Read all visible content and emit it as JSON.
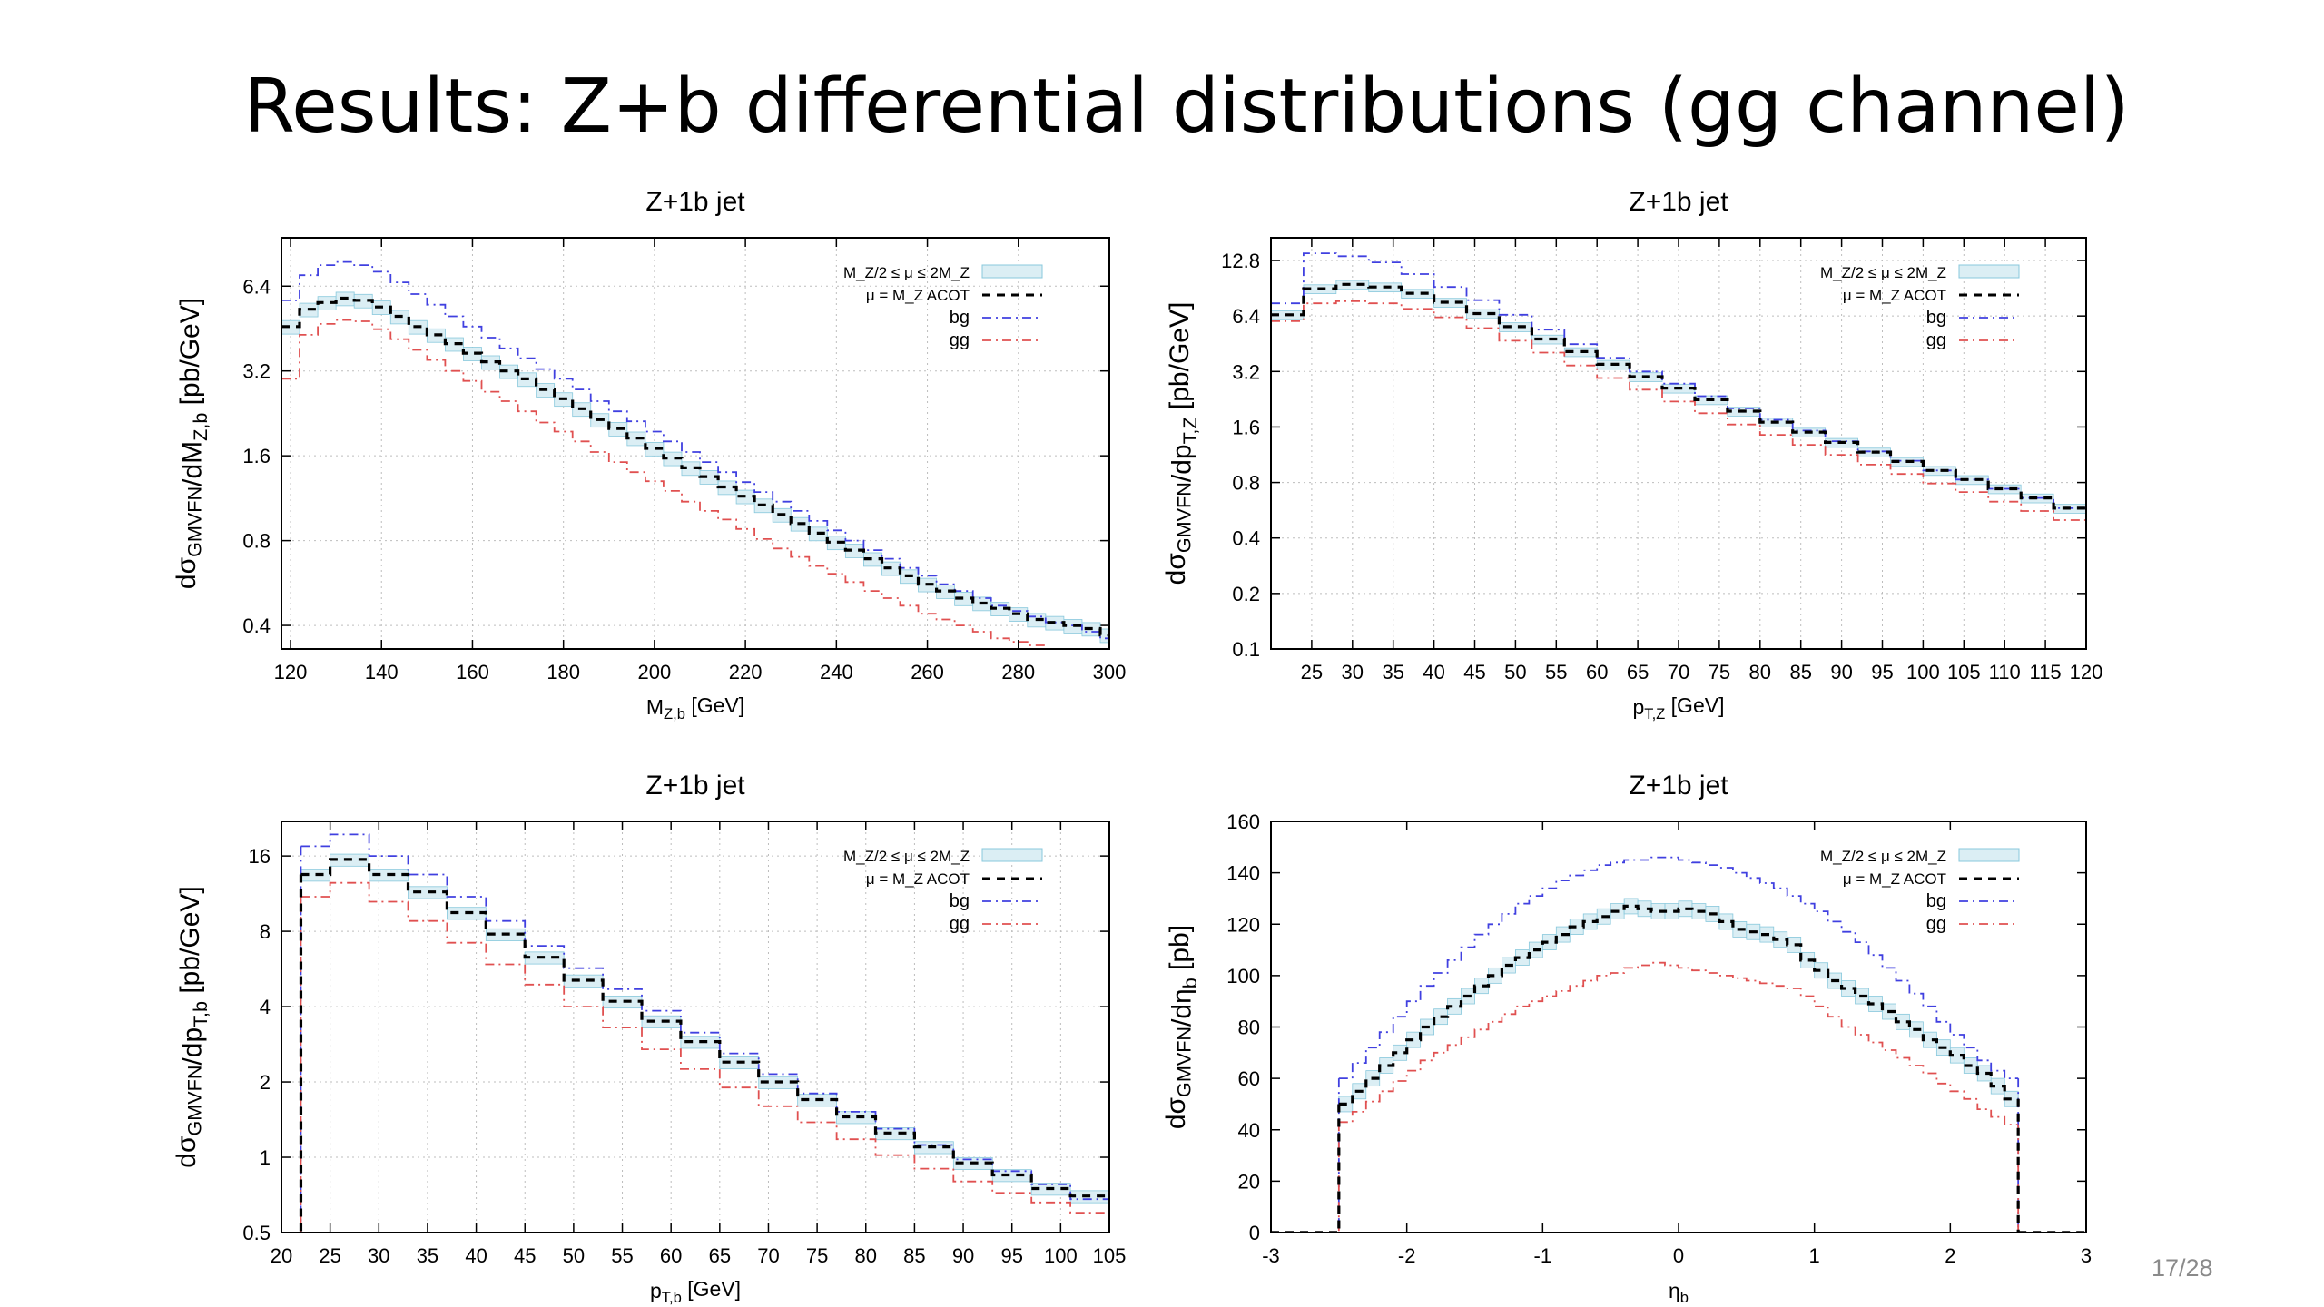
{
  "slide": {
    "title": "Results: Z+b differential distributions (gg channel)",
    "page": "17/28"
  },
  "colors": {
    "band": "#dbeef4",
    "band_edge": "#88c8dc",
    "acot": "#000000",
    "bg": "#4040e0",
    "gg": "#e05050",
    "frame": "#000000",
    "grid": "#bdbdbd"
  },
  "chart_data": [
    {
      "type": "line",
      "title": "Z+1b jet",
      "xlabel": "M",
      "xlabel_sub": "Z,b",
      "xlabel_unit": "[GeV]",
      "ylabel": "dσ",
      "ylabel_sub": "GMVFN",
      "ylabel_mid": "/dM",
      "ylabel_sub2": "Z,b",
      "ylabel_unit": " [pb/GeV]",
      "yscale": "log",
      "xlim": [
        118,
        300
      ],
      "ylim": [
        0.33,
        9.5
      ],
      "xticks": [
        120,
        140,
        160,
        180,
        200,
        220,
        240,
        260,
        280,
        300
      ],
      "yticks": [
        0.4,
        0.8,
        1.6,
        3.2,
        6.4
      ],
      "ytick_labels": [
        "0.4",
        "0.8",
        "1.6",
        "3.2",
        "6.4"
      ],
      "grid": true,
      "legend_position": "top-right",
      "legend": [
        "M_Z/2 ≤ μ ≤ 2M_Z",
        "μ = M_Z  ACOT",
        "bg",
        "gg"
      ],
      "bin_edges": [
        118,
        122,
        126,
        130,
        134,
        138,
        142,
        146,
        150,
        154,
        158,
        162,
        166,
        170,
        174,
        178,
        182,
        186,
        190,
        194,
        198,
        202,
        206,
        210,
        214,
        218,
        222,
        226,
        230,
        234,
        238,
        242,
        246,
        250,
        254,
        258,
        262,
        266,
        270,
        274,
        278,
        282,
        286,
        290,
        294,
        298,
        300
      ],
      "series": [
        {
          "name": "μ = M_Z ACOT",
          "kind": "acot",
          "values": [
            4.6,
            5.3,
            5.6,
            5.8,
            5.7,
            5.4,
            5.0,
            4.6,
            4.3,
            4.0,
            3.7,
            3.45,
            3.2,
            3.0,
            2.75,
            2.55,
            2.35,
            2.15,
            2.0,
            1.85,
            1.7,
            1.57,
            1.45,
            1.35,
            1.24,
            1.15,
            1.07,
            0.99,
            0.92,
            0.85,
            0.79,
            0.74,
            0.69,
            0.64,
            0.6,
            0.56,
            0.53,
            0.5,
            0.48,
            0.46,
            0.44,
            0.42,
            0.41,
            0.4,
            0.39,
            0.37
          ]
        },
        {
          "name": "bg",
          "kind": "bg",
          "values": [
            5.7,
            7.0,
            7.6,
            7.8,
            7.6,
            7.2,
            6.6,
            6.0,
            5.5,
            5.0,
            4.6,
            4.2,
            3.85,
            3.55,
            3.25,
            3.0,
            2.75,
            2.5,
            2.3,
            2.12,
            1.95,
            1.8,
            1.65,
            1.52,
            1.4,
            1.29,
            1.19,
            1.1,
            1.02,
            0.94,
            0.87,
            0.8,
            0.74,
            0.69,
            0.64,
            0.6,
            0.56,
            0.53,
            0.5,
            0.47,
            0.45,
            0.43,
            0.41,
            0.4,
            0.38,
            0.36
          ]
        },
        {
          "name": "gg",
          "kind": "gg",
          "values": [
            3.0,
            4.3,
            4.7,
            4.85,
            4.8,
            4.5,
            4.15,
            3.8,
            3.5,
            3.2,
            2.95,
            2.7,
            2.5,
            2.3,
            2.1,
            1.95,
            1.8,
            1.65,
            1.52,
            1.4,
            1.3,
            1.2,
            1.1,
            1.02,
            0.95,
            0.88,
            0.81,
            0.75,
            0.7,
            0.65,
            0.61,
            0.57,
            0.53,
            0.5,
            0.47,
            0.44,
            0.42,
            0.4,
            0.38,
            0.36,
            0.35,
            0.34,
            0.33,
            0.32,
            0.31,
            0.3
          ]
        }
      ]
    },
    {
      "type": "line",
      "title": "Z+1b jet",
      "xlabel": "p",
      "xlabel_sub": "T,Z",
      "xlabel_unit": "[GeV]",
      "ylabel": "dσ",
      "ylabel_sub": "GMVFN",
      "ylabel_mid": "/dp",
      "ylabel_sub2": "T,Z",
      "ylabel_unit": " [pb/GeV]",
      "yscale": "log",
      "xlim": [
        20,
        120
      ],
      "ylim": [
        0.1,
        17
      ],
      "xticks": [
        25,
        30,
        35,
        40,
        45,
        50,
        55,
        60,
        65,
        70,
        75,
        80,
        85,
        90,
        95,
        100,
        105,
        110,
        115,
        120
      ],
      "yticks": [
        0.1,
        0.2,
        0.4,
        0.8,
        1.6,
        3.2,
        6.4,
        12.8
      ],
      "ytick_labels": [
        "0.1",
        "0.2",
        "0.4",
        "0.8",
        "1.6",
        "3.2",
        "6.4",
        "12.8"
      ],
      "grid": true,
      "legend_position": "top-right",
      "legend": [
        "M_Z/2 ≤ μ ≤ 2M_Z",
        "μ = M_Z  ACOT",
        "bg",
        "gg"
      ],
      "bin_edges": [
        20,
        24,
        28,
        32,
        36,
        40,
        44,
        48,
        52,
        56,
        60,
        64,
        68,
        72,
        76,
        80,
        84,
        88,
        92,
        96,
        100,
        104,
        108,
        112,
        116,
        120
      ],
      "series": [
        {
          "name": "μ = M_Z ACOT",
          "kind": "acot",
          "values": [
            6.5,
            9.0,
            9.5,
            9.2,
            8.5,
            7.6,
            6.6,
            5.6,
            4.8,
            4.1,
            3.5,
            3.0,
            2.6,
            2.25,
            1.95,
            1.7,
            1.5,
            1.32,
            1.17,
            1.04,
            0.93,
            0.83,
            0.74,
            0.66,
            0.58
          ]
        },
        {
          "name": "bg",
          "kind": "bg",
          "values": [
            7.5,
            14.0,
            13.5,
            12.5,
            10.8,
            9.2,
            7.8,
            6.5,
            5.4,
            4.5,
            3.8,
            3.2,
            2.75,
            2.35,
            2.02,
            1.75,
            1.53,
            1.34,
            1.18,
            1.05,
            0.93,
            0.83,
            0.74,
            0.66,
            0.58
          ]
        },
        {
          "name": "gg",
          "kind": "gg",
          "values": [
            6.0,
            7.5,
            7.7,
            7.5,
            7.0,
            6.3,
            5.5,
            4.7,
            4.05,
            3.45,
            2.95,
            2.55,
            2.2,
            1.9,
            1.65,
            1.45,
            1.28,
            1.13,
            1.0,
            0.89,
            0.79,
            0.71,
            0.63,
            0.56,
            0.5
          ]
        }
      ]
    },
    {
      "type": "line",
      "title": "Z+1b jet",
      "xlabel": "p",
      "xlabel_sub": "T,b",
      "xlabel_unit": "[GeV]",
      "ylabel": "dσ",
      "ylabel_sub": "GMVFN",
      "ylabel_mid": "/dp",
      "ylabel_sub2": "T,b",
      "ylabel_unit": " [pb/GeV]",
      "yscale": "log",
      "xlim": [
        20,
        105
      ],
      "ylim": [
        0.5,
        22
      ],
      "xticks": [
        20,
        25,
        30,
        35,
        40,
        45,
        50,
        55,
        60,
        65,
        70,
        75,
        80,
        85,
        90,
        95,
        100,
        105
      ],
      "yticks": [
        0.5,
        1,
        2,
        4,
        8,
        16
      ],
      "ytick_labels": [
        "0.5",
        "1",
        "2",
        "4",
        "8",
        "16"
      ],
      "grid": true,
      "legend_position": "top-right",
      "legend": [
        "M_Z/2 ≤ μ ≤ 2M_Z",
        "μ = M_Z  ACOT",
        "bg",
        "gg"
      ],
      "bin_edges": [
        22,
        25,
        29,
        33,
        37,
        41,
        45,
        49,
        53,
        57,
        61,
        65,
        69,
        73,
        77,
        81,
        85,
        89,
        93,
        97,
        101,
        105
      ],
      "series": [
        {
          "name": "μ = M_Z ACOT",
          "kind": "acot",
          "values": [
            13.5,
            15.5,
            13.5,
            11.5,
            9.5,
            7.8,
            6.3,
            5.1,
            4.2,
            3.5,
            2.9,
            2.4,
            2.0,
            1.7,
            1.45,
            1.25,
            1.1,
            0.95,
            0.85,
            0.75,
            0.7
          ]
        },
        {
          "name": "bg",
          "kind": "bg",
          "values": [
            17.5,
            19.5,
            16.0,
            13.5,
            11.0,
            8.8,
            7.0,
            5.7,
            4.7,
            3.85,
            3.15,
            2.6,
            2.15,
            1.8,
            1.52,
            1.3,
            1.12,
            0.98,
            0.88,
            0.78,
            0.68
          ]
        },
        {
          "name": "gg",
          "kind": "gg",
          "values": [
            11.0,
            12.5,
            10.5,
            8.8,
            7.2,
            5.9,
            4.9,
            4.0,
            3.3,
            2.7,
            2.25,
            1.9,
            1.6,
            1.38,
            1.18,
            1.02,
            0.9,
            0.8,
            0.72,
            0.66,
            0.6
          ]
        }
      ]
    },
    {
      "type": "line",
      "title": "Z+1b jet",
      "xlabel": "η",
      "xlabel_sub": "b",
      "xlabel_unit": "",
      "ylabel": "dσ",
      "ylabel_sub": "GMVFN",
      "ylabel_mid": "/dη",
      "ylabel_sub2": "b",
      "ylabel_unit": " [pb]",
      "yscale": "linear",
      "xlim": [
        -3,
        3
      ],
      "ylim": [
        0,
        160
      ],
      "xticks": [
        -3,
        -2,
        -1,
        0,
        1,
        2,
        3
      ],
      "yticks": [
        0,
        20,
        40,
        60,
        80,
        100,
        120,
        140,
        160
      ],
      "ytick_labels": [
        "0",
        "20",
        "40",
        "60",
        "80",
        "100",
        "120",
        "140",
        "160"
      ],
      "grid": false,
      "legend_position": "top-right",
      "legend": [
        "M_Z/2 ≤ μ ≤ 2M_Z",
        "μ = M_Z  ACOT",
        "bg",
        "gg"
      ],
      "bin_edges": [
        -2.5,
        -2.4,
        -2.3,
        -2.2,
        -2.1,
        -2.0,
        -1.9,
        -1.8,
        -1.7,
        -1.6,
        -1.5,
        -1.4,
        -1.3,
        -1.2,
        -1.1,
        -1.0,
        -0.9,
        -0.8,
        -0.7,
        -0.6,
        -0.5,
        -0.4,
        -0.3,
        -0.2,
        -0.1,
        0.0,
        0.1,
        0.2,
        0.3,
        0.4,
        0.5,
        0.6,
        0.7,
        0.8,
        0.9,
        1.0,
        1.1,
        1.2,
        1.3,
        1.4,
        1.5,
        1.6,
        1.7,
        1.8,
        1.9,
        2.0,
        2.1,
        2.2,
        2.3,
        2.4,
        2.5
      ],
      "series": [
        {
          "name": "μ = M_Z ACOT",
          "kind": "acot",
          "values": [
            50,
            55,
            60,
            65,
            70,
            75,
            80,
            84,
            88,
            92,
            96,
            100,
            104,
            107,
            110,
            113,
            116,
            119,
            121,
            123,
            125,
            127,
            126,
            125,
            125,
            126,
            125,
            124,
            121,
            118,
            117,
            116,
            114,
            112,
            106,
            102,
            98,
            95,
            92,
            89,
            86,
            82,
            79,
            75,
            72,
            69,
            65,
            62,
            57,
            52
          ]
        },
        {
          "name": "bg",
          "kind": "bg",
          "values": [
            60,
            66,
            72,
            78,
            84,
            90,
            96,
            101,
            106,
            111,
            116,
            120,
            124,
            128,
            131,
            134,
            137,
            139,
            141,
            143,
            144,
            145,
            145,
            146,
            146,
            145,
            144,
            143,
            142,
            140,
            138,
            136,
            134,
            131,
            128,
            125,
            121,
            117,
            113,
            108,
            103,
            98,
            93,
            88,
            82,
            77,
            72,
            67,
            63,
            60
          ]
        },
        {
          "name": "gg",
          "kind": "gg",
          "values": [
            43,
            47,
            51,
            55,
            59,
            63,
            67,
            70,
            73,
            76,
            79,
            82,
            85,
            88,
            90,
            92,
            94,
            96,
            98,
            100,
            101,
            103,
            104,
            105,
            104,
            103,
            102,
            101,
            100,
            99,
            98,
            97,
            96,
            95,
            92,
            88,
            84,
            80,
            77,
            74,
            71,
            68,
            65,
            62,
            58,
            55,
            52,
            48,
            45,
            42
          ]
        }
      ]
    }
  ]
}
